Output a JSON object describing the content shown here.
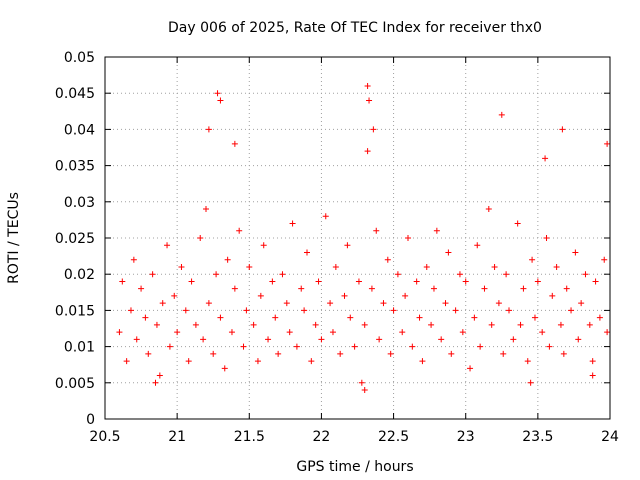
{
  "chart_data": {
    "type": "scatter",
    "title": "Day 006 of 2025, Rate Of TEC Index for receiver thx0",
    "xlabel": "GPS time / hours",
    "ylabel": "ROTI / TECUs",
    "xlim": [
      20.5,
      24
    ],
    "ylim": [
      0,
      0.05
    ],
    "x_ticks": [
      20.5,
      21,
      21.5,
      22,
      22.5,
      23,
      23.5,
      24
    ],
    "x_tick_labels": [
      "20.5",
      "21",
      "21.5",
      "22",
      "22.5",
      "23",
      "23.5",
      "24"
    ],
    "y_ticks": [
      0,
      0.005,
      0.01,
      0.015,
      0.02,
      0.025,
      0.03,
      0.035,
      0.04,
      0.045,
      0.05
    ],
    "y_tick_labels": [
      "0",
      "0.005",
      "0.01",
      "0.015",
      "0.02",
      "0.025",
      "0.03",
      "0.035",
      "0.04",
      "0.045",
      "0.05"
    ],
    "grid": true,
    "marker": "plus",
    "series": [
      {
        "name": "ROTI",
        "color": "#ff0000",
        "x": [
          20.6,
          20.62,
          20.65,
          20.68,
          20.7,
          20.72,
          20.75,
          20.78,
          20.8,
          20.83,
          20.86,
          20.88,
          20.9,
          20.93,
          20.95,
          20.98,
          21.0,
          21.03,
          21.06,
          21.08,
          21.1,
          21.13,
          21.16,
          21.18,
          21.2,
          21.22,
          21.25,
          21.27,
          21.3,
          21.33,
          21.35,
          21.38,
          21.4,
          21.43,
          21.46,
          21.48,
          21.5,
          21.53,
          21.56,
          21.58,
          21.6,
          21.63,
          21.66,
          21.68,
          21.7,
          21.73,
          21.76,
          21.78,
          21.8,
          21.83,
          21.86,
          21.88,
          21.9,
          21.93,
          21.96,
          21.98,
          22.0,
          22.03,
          22.06,
          22.08,
          22.1,
          22.13,
          22.16,
          22.18,
          22.2,
          22.23,
          22.26,
          22.28,
          22.3,
          22.32,
          22.35,
          22.38,
          22.4,
          22.43,
          22.46,
          22.48,
          22.5,
          22.53,
          22.56,
          22.58,
          22.6,
          22.63,
          22.66,
          22.68,
          22.7,
          22.73,
          22.76,
          22.78,
          22.8,
          22.83,
          22.86,
          22.88,
          22.9,
          22.93,
          22.96,
          22.98,
          23.0,
          23.03,
          23.06,
          23.08,
          23.1,
          23.13,
          23.16,
          23.18,
          23.2,
          23.23,
          23.26,
          23.28,
          23.3,
          23.33,
          23.36,
          23.38,
          23.4,
          23.43,
          23.46,
          23.48,
          23.5,
          23.53,
          23.56,
          23.58,
          23.6,
          23.63,
          23.66,
          23.68,
          23.7,
          23.73,
          23.76,
          23.78,
          23.8,
          23.83,
          23.86,
          23.88,
          23.9,
          23.93,
          23.96,
          23.98,
          21.28,
          21.3,
          22.32,
          22.33,
          23.25,
          23.67,
          21.22,
          21.4,
          22.36,
          23.55,
          23.98,
          20.85,
          22.3,
          23.45,
          23.88
        ],
        "y": [
          0.012,
          0.019,
          0.008,
          0.015,
          0.022,
          0.011,
          0.018,
          0.014,
          0.009,
          0.02,
          0.013,
          0.006,
          0.016,
          0.024,
          0.01,
          0.017,
          0.012,
          0.021,
          0.015,
          0.008,
          0.019,
          0.013,
          0.025,
          0.011,
          0.029,
          0.016,
          0.009,
          0.02,
          0.014,
          0.007,
          0.022,
          0.012,
          0.018,
          0.026,
          0.01,
          0.015,
          0.021,
          0.013,
          0.008,
          0.017,
          0.024,
          0.011,
          0.019,
          0.014,
          0.009,
          0.02,
          0.016,
          0.012,
          0.027,
          0.01,
          0.018,
          0.015,
          0.023,
          0.008,
          0.013,
          0.019,
          0.011,
          0.028,
          0.016,
          0.012,
          0.021,
          0.009,
          0.017,
          0.024,
          0.014,
          0.01,
          0.019,
          0.005,
          0.013,
          0.037,
          0.018,
          0.026,
          0.011,
          0.016,
          0.022,
          0.009,
          0.015,
          0.02,
          0.012,
          0.017,
          0.025,
          0.01,
          0.019,
          0.014,
          0.008,
          0.021,
          0.013,
          0.018,
          0.026,
          0.011,
          0.016,
          0.023,
          0.009,
          0.015,
          0.02,
          0.012,
          0.019,
          0.007,
          0.014,
          0.024,
          0.01,
          0.018,
          0.029,
          0.013,
          0.021,
          0.016,
          0.009,
          0.02,
          0.015,
          0.011,
          0.027,
          0.013,
          0.018,
          0.008,
          0.022,
          0.014,
          0.019,
          0.012,
          0.025,
          0.01,
          0.017,
          0.021,
          0.013,
          0.009,
          0.018,
          0.015,
          0.023,
          0.011,
          0.016,
          0.02,
          0.013,
          0.008,
          0.019,
          0.014,
          0.022,
          0.012,
          0.045,
          0.044,
          0.046,
          0.044,
          0.042,
          0.04,
          0.04,
          0.038,
          0.04,
          0.036,
          0.038,
          0.005,
          0.004,
          0.005,
          0.006
        ]
      }
    ]
  }
}
